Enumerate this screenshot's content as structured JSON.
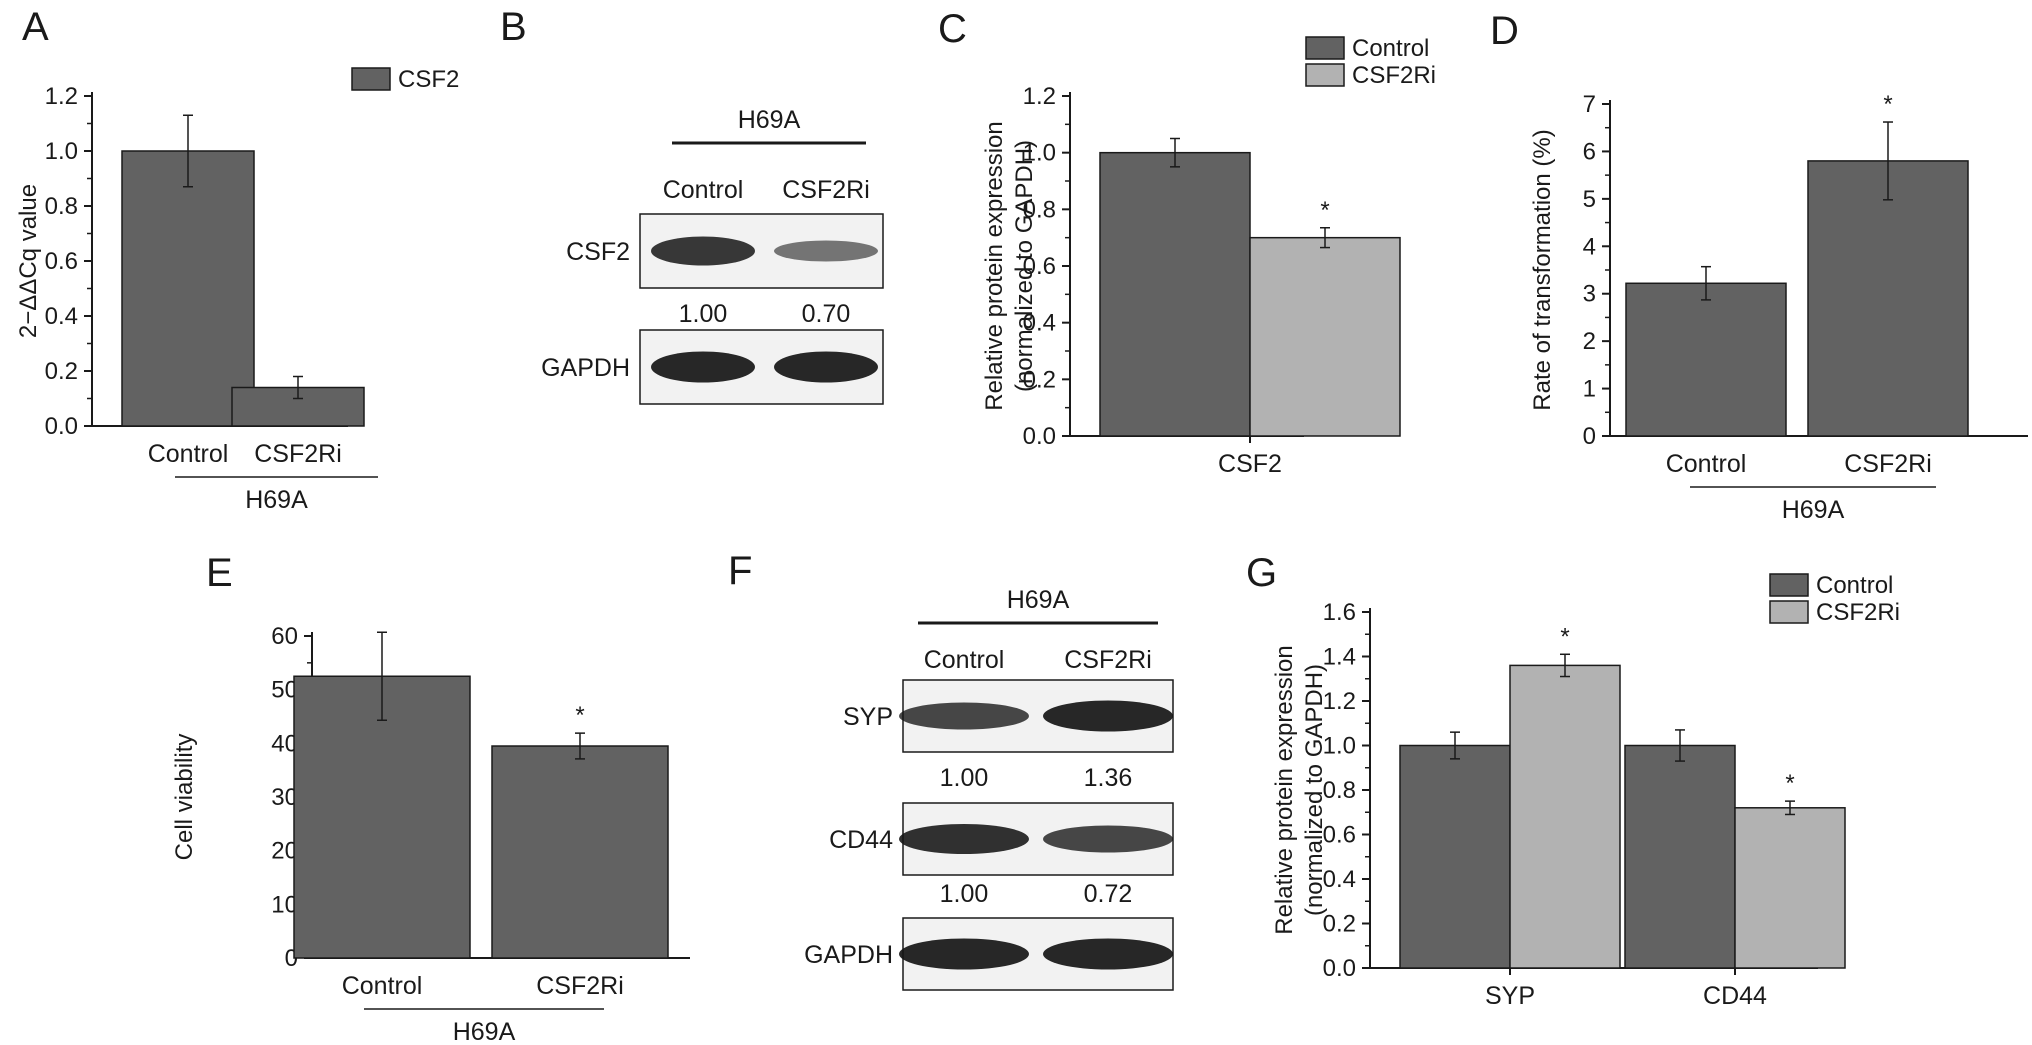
{
  "colors": {
    "dark_bar": "#626262",
    "light_bar": "#b2b2b2",
    "axis": "#1a1a1a",
    "blot_bg": "#f2f2f2",
    "band": "#141414"
  },
  "panels": {
    "A": {
      "letter": "A",
      "chart_data": {
        "type": "bar",
        "categories": [
          "Control",
          "CSF2Ri"
        ],
        "series": [
          {
            "name": "CSF2",
            "values": [
              1.0,
              0.14
            ],
            "errors": [
              0.13,
              0.04
            ]
          }
        ],
        "ylabel": "2−ΔΔCq value",
        "ylim": [
          0,
          1.2
        ],
        "yticks": [
          "0.0",
          "0.2",
          "0.4",
          "0.6",
          "0.8",
          "1.0",
          "1.2"
        ],
        "group_label": "H69A",
        "significance": [
          "",
          "*"
        ],
        "legend": "top-right"
      }
    },
    "B": {
      "letter": "B",
      "header": "H69A",
      "columns": [
        "Control",
        "CSF2Ri"
      ],
      "rows": [
        {
          "label": "CSF2",
          "intensities": [
            0.85,
            0.45
          ]
        },
        {
          "label": "GAPDH",
          "intensities": [
            0.95,
            0.95
          ]
        }
      ],
      "quant": [
        "1.00",
        "0.70"
      ]
    },
    "C": {
      "letter": "C",
      "chart_data": {
        "type": "bar",
        "categories": [
          "CSF2"
        ],
        "series": [
          {
            "name": "Control",
            "values": [
              1.0
            ],
            "errors": [
              0.05
            ]
          },
          {
            "name": "CSF2Ri",
            "values": [
              0.7
            ],
            "errors": [
              0.035
            ]
          }
        ],
        "ylabel_lines": [
          "Relative protein expression",
          "(normalized to GAPDH)"
        ],
        "ylim": [
          0,
          1.2
        ],
        "yticks": [
          "0.0",
          "0.2",
          "0.4",
          "0.6",
          "0.8",
          "1.0",
          "1.2"
        ],
        "significance": [
          "",
          "*"
        ],
        "legend": "top-right"
      }
    },
    "D": {
      "letter": "D",
      "chart_data": {
        "type": "bar",
        "categories": [
          "Control",
          "CSF2Ri"
        ],
        "values": [
          3.22,
          5.8
        ],
        "errors": [
          0.35,
          0.82
        ],
        "ylabel": "Rate of transformation (%)",
        "ylim": [
          0,
          7
        ],
        "yticks": [
          "0",
          "1",
          "2",
          "3",
          "4",
          "5",
          "6",
          "7"
        ],
        "group_label": "H69A",
        "significance": [
          "",
          "*"
        ]
      }
    },
    "E": {
      "letter": "E",
      "chart_data": {
        "type": "bar",
        "categories": [
          "Control",
          "CSF2Ri"
        ],
        "values": [
          52.5,
          39.5
        ],
        "errors": [
          8.2,
          2.4
        ],
        "ylabel": "Cell viability",
        "ylim": [
          0,
          60
        ],
        "yticks": [
          "0",
          "10",
          "20",
          "30",
          "40",
          "50",
          "60"
        ],
        "group_label": "H69A",
        "significance": [
          "",
          "*"
        ]
      }
    },
    "F": {
      "letter": "F",
      "header": "H69A",
      "columns": [
        "Control",
        "CSF2Ri"
      ],
      "rows": [
        {
          "label": "SYP",
          "intensities": [
            0.75,
            0.95
          ]
        },
        {
          "label": "CD44",
          "intensities": [
            0.9,
            0.75
          ]
        },
        {
          "label": "GAPDH",
          "intensities": [
            0.95,
            0.95
          ]
        }
      ],
      "quant": [
        [
          "1.00",
          "1.36"
        ],
        [
          "1.00",
          "0.72"
        ]
      ]
    },
    "G": {
      "letter": "G",
      "chart_data": {
        "type": "bar",
        "categories": [
          "SYP",
          "CD44"
        ],
        "series": [
          {
            "name": "Control",
            "values": [
              1.0,
              1.0
            ],
            "errors": [
              0.06,
              0.07
            ]
          },
          {
            "name": "CSF2Ri",
            "values": [
              1.36,
              0.72
            ],
            "errors": [
              0.05,
              0.03
            ]
          }
        ],
        "ylabel_lines": [
          "Relative protein expression",
          "(normalized to GAPDH)"
        ],
        "ylim": [
          0,
          1.6
        ],
        "yticks": [
          "0.0",
          "0.2",
          "0.4",
          "0.6",
          "0.8",
          "1.0",
          "1.2",
          "1.4",
          "1.6"
        ],
        "significance": [
          [
            "",
            "*"
          ],
          [
            "",
            "*"
          ]
        ],
        "legend": "top-right"
      }
    }
  }
}
